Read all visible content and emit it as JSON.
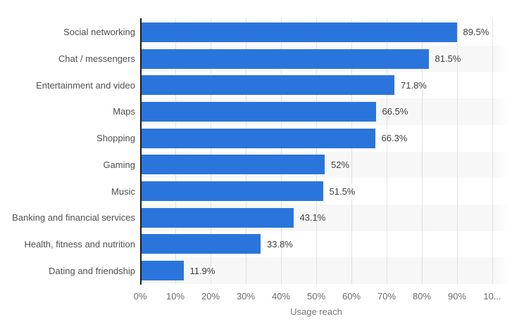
{
  "chart_data": {
    "type": "bar",
    "orientation": "horizontal",
    "title": "",
    "xlabel": "Usage reach",
    "ylabel": "",
    "categories": [
      "Social networking",
      "Chat / messengers",
      "Entertainment and video",
      "Maps",
      "Shopping",
      "Gaming",
      "Music",
      "Banking and financial services",
      "Health, fitness and nutrition",
      "Dating and friendship"
    ],
    "values": [
      89.5,
      81.5,
      71.8,
      66.5,
      66.3,
      52,
      51.5,
      43.1,
      33.8,
      11.9
    ],
    "value_labels": [
      "89.5%",
      "81.5%",
      "71.8%",
      "66.5%",
      "66.3%",
      "52%",
      "51.5%",
      "43.1%",
      "33.8%",
      "11.9%"
    ],
    "x_ticks": [
      "0%",
      "10%",
      "20%",
      "30%",
      "40%",
      "50%",
      "60%",
      "70%",
      "80%",
      "90%",
      "10..."
    ],
    "xlim": [
      0,
      100
    ],
    "grid": "dotted-vertical",
    "legend": "none",
    "colors": {
      "bar": "#2a75dc",
      "axis_line": "#1a1a1a",
      "gridline": "#c8c8c8",
      "row_stripe": "#f7f7f7",
      "category_text": "#4f4f4f",
      "value_text": "#3d3d3d",
      "tick_text": "#6b6b6b",
      "axis_title_text": "#767676"
    }
  }
}
